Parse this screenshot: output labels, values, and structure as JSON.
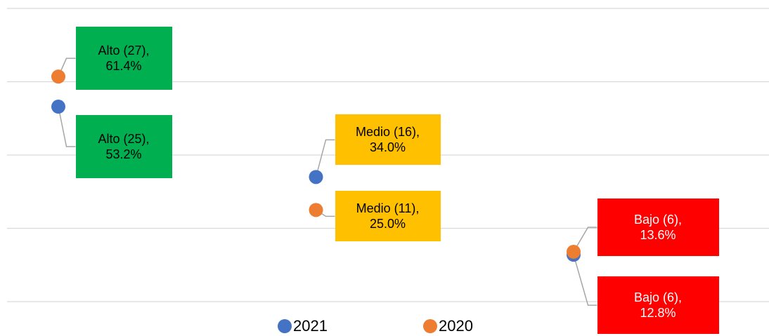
{
  "chart_data": {
    "type": "scatter",
    "categories": [
      "Alto",
      "Medio",
      "Bajo"
    ],
    "label_colors": [
      "#00b050",
      "#ffc000",
      "#ff0000"
    ],
    "series": [
      {
        "name": "2021",
        "color": "#4472c4",
        "values": [
          53.2,
          34.0,
          12.8
        ],
        "value_labels": [
          "Alto (25), 53.2%",
          "Medio (16), 34.0%",
          "Bajo (6), 12.8%"
        ]
      },
      {
        "name": "2020",
        "color": "#ed7d31",
        "values": [
          61.4,
          25.0,
          13.6
        ],
        "value_labels": [
          "Alto (27), 61.4%",
          "Medio (11), 25.0%",
          "Bajo (6), 13.6%"
        ]
      }
    ],
    "ylim": [
      0,
      80
    ],
    "yticks": [
      0,
      20,
      40,
      60,
      80
    ],
    "grid": true,
    "legend": "bottom"
  }
}
